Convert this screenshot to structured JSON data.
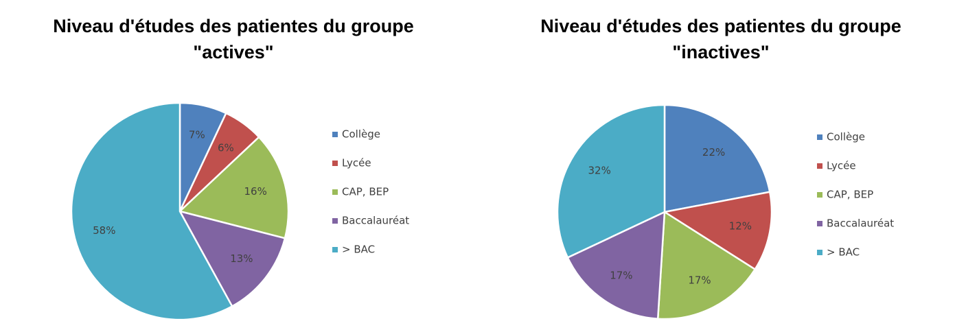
{
  "chart_data": [
    {
      "type": "pie",
      "title": [
        "Niveau d'études des patientes du groupe",
        "\"actives\""
      ],
      "categories": [
        "Collège",
        "Lycée",
        "CAP, BEP",
        "Baccalauréat",
        "> BAC"
      ],
      "values": [
        7,
        6,
        16,
        13,
        58
      ],
      "value_labels": [
        "7%",
        "6%",
        "16%",
        "13%",
        "58%"
      ],
      "colors": [
        "#4f81bd",
        "#c0504d",
        "#9bbb59",
        "#8064a2",
        "#4bacc6"
      ],
      "legend": "right"
    },
    {
      "type": "pie",
      "title": [
        "Niveau d'études des patientes du groupe",
        "\"inactives\""
      ],
      "categories": [
        "Collège",
        "Lycée",
        "CAP, BEP",
        "Baccalauréat",
        "> BAC"
      ],
      "values": [
        22,
        12,
        17,
        17,
        32
      ],
      "value_labels": [
        "22%",
        "12%",
        "17%",
        "17%",
        "32%"
      ],
      "colors": [
        "#4f81bd",
        "#c0504d",
        "#9bbb59",
        "#8064a2",
        "#4bacc6"
      ],
      "legend": "right"
    }
  ]
}
